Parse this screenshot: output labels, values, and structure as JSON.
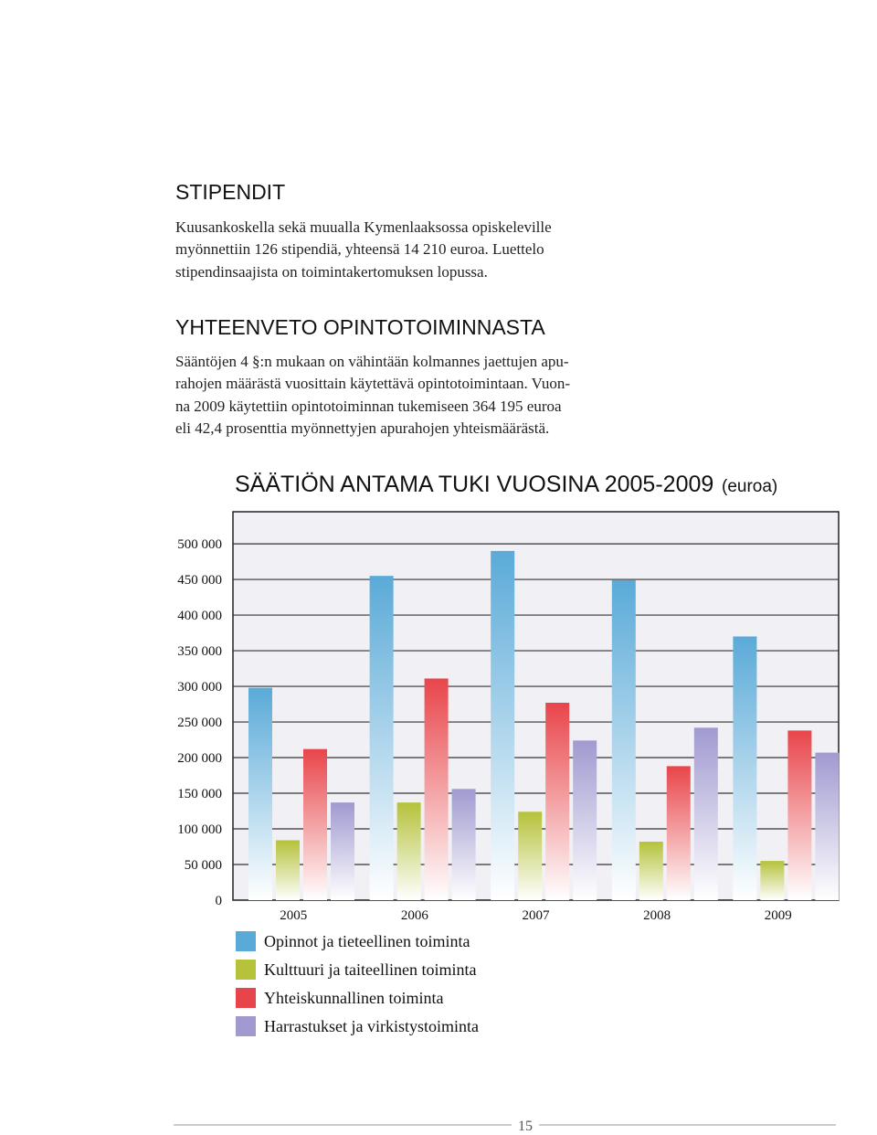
{
  "sections": [
    {
      "heading": "STIPENDIT",
      "lines": [
        "Kuusankoskella sekä muualla Kymenlaaksossa opiskeleville",
        "myönnettiin 126 stipendiä, yhteensä 14 210 euroa. Luettelo",
        "stipendinsaajista on toimintakertomuksen lopussa."
      ]
    },
    {
      "heading": "YHTEENVETO OPINTOTOIMINNASTA",
      "lines": [
        "Sääntöjen 4 §:n mukaan on vähintään kolmannes jaettujen apu-",
        "rahojen määrästä vuosittain käytettävä opintotoimintaan. Vuon-",
        "na 2009 käytettiin opintotoiminnan tukemiseen 364 195 euroa",
        "eli 42,4 prosenttia myönnettyjen apurahojen yhteismäärästä."
      ]
    }
  ],
  "chart_data": {
    "type": "bar",
    "title": "SÄÄTIÖN ANTAMA TUKI VUOSINA 2005-2009",
    "subtitle": "(euroa)",
    "categories": [
      "2005",
      "2006",
      "2007",
      "2008",
      "2009"
    ],
    "series": [
      {
        "name": "Opinnot ja tieteellinen toiminta",
        "color": "#5aaad8",
        "values": [
          298000,
          455000,
          490000,
          449000,
          370000
        ]
      },
      {
        "name": "Kulttuuri ja taiteellinen toiminta",
        "color": "#b5c23a",
        "values": [
          84000,
          137000,
          124000,
          82000,
          55000
        ]
      },
      {
        "name": "Yhteiskunnallinen toiminta",
        "color": "#e8454a",
        "values": [
          212000,
          311000,
          277000,
          188000,
          238000
        ]
      },
      {
        "name": "Harrastukset ja virkistystoiminta",
        "color": "#a09ad0",
        "values": [
          137000,
          156000,
          224000,
          242000,
          207000
        ]
      }
    ],
    "ylim": [
      0,
      545000
    ],
    "yticks": [
      0,
      {
        "value": 50000,
        "label": "50 000"
      },
      {
        "value": 100000,
        "label": "100 000"
      },
      {
        "value": 150000,
        "label": "150 000"
      },
      {
        "value": 200000,
        "label": "200 000"
      },
      {
        "value": 250000,
        "label": "250 000"
      },
      {
        "value": 300000,
        "label": "300 000"
      },
      {
        "value": 350000,
        "label": "350 000"
      },
      {
        "value": 400000,
        "label": "400 000"
      },
      {
        "value": 450000,
        "label": "450 000"
      },
      {
        "value": 500000,
        "label": "500 000"
      }
    ],
    "grid": true
  },
  "page_number": "15"
}
